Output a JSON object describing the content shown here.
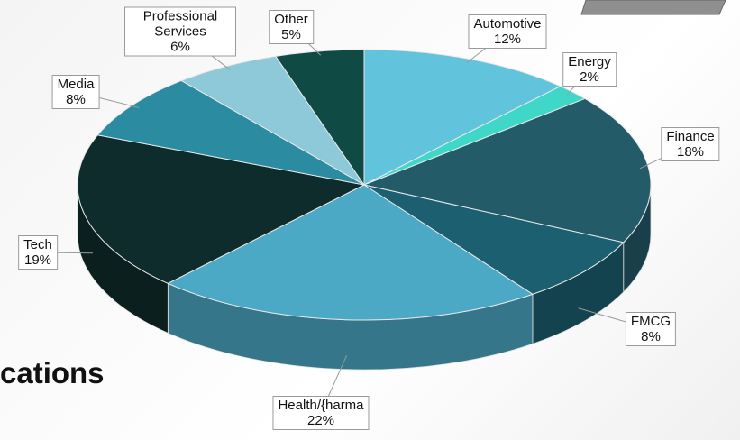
{
  "heading": "cations",
  "chart_data": {
    "type": "pie",
    "categories": [
      "Automotive",
      "Energy",
      "Finance",
      "FMCG",
      "Health/{harma",
      "Tech",
      "Media",
      "Professional Services",
      "Other"
    ],
    "values": [
      12,
      2,
      18,
      8,
      22,
      19,
      8,
      6,
      5
    ],
    "value_labels": [
      "12%",
      "2%",
      "18%",
      "8%",
      "22%",
      "19%",
      "8%",
      "6%",
      "5%"
    ],
    "colors": [
      "#62c3dc",
      "#3fd8c8",
      "#245b69",
      "#1b5f70",
      "#4ba9c5",
      "#0f2c2c",
      "#2a8ba1",
      "#8ec9d9",
      "#0f4a45"
    ]
  }
}
